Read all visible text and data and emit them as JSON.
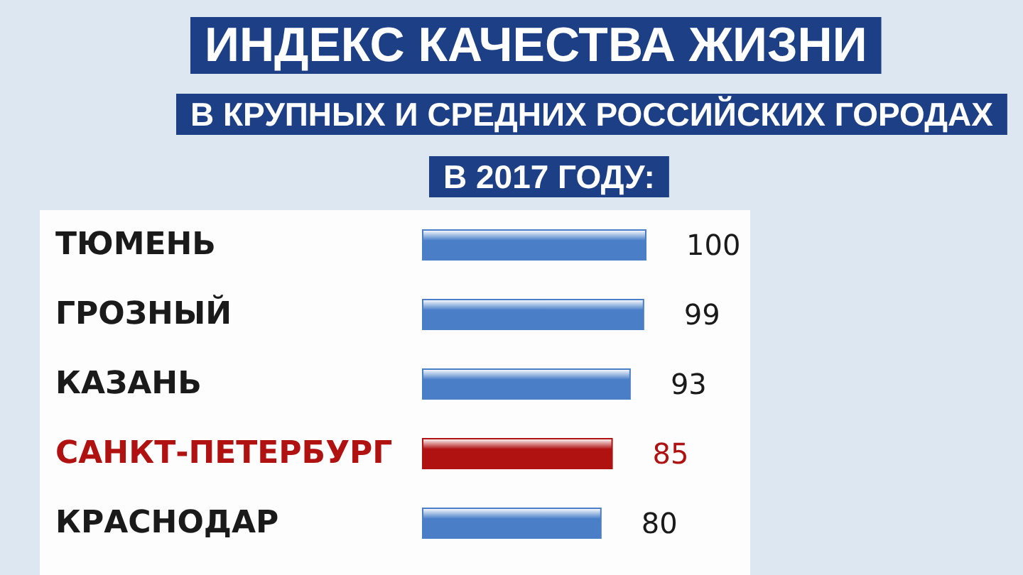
{
  "chart_data": {
    "type": "bar",
    "orientation": "horizontal",
    "title": "ИНДЕКС КАЧЕСТВА ЖИЗНИ",
    "subtitle": "В КРУПНЫХ И СРЕДНИХ РОССИЙСКИХ ГОРОДАХ\nВ 2017 ГОДУ:",
    "categories": [
      "ТЮМЕНЬ",
      "ГРОЗНЫЙ",
      "КАЗАНЬ",
      "САНКТ-ПЕТЕРБУРГ",
      "КРАСНОДАР"
    ],
    "values": [
      100,
      99,
      93,
      85,
      80
    ],
    "color": "#4a7fc8",
    "colors": [
      "#4a7fc8",
      "#4a7fc8",
      "#4a7fc8",
      "#b01212",
      "#4a7fc8"
    ],
    "data_labels": true
  }
}
